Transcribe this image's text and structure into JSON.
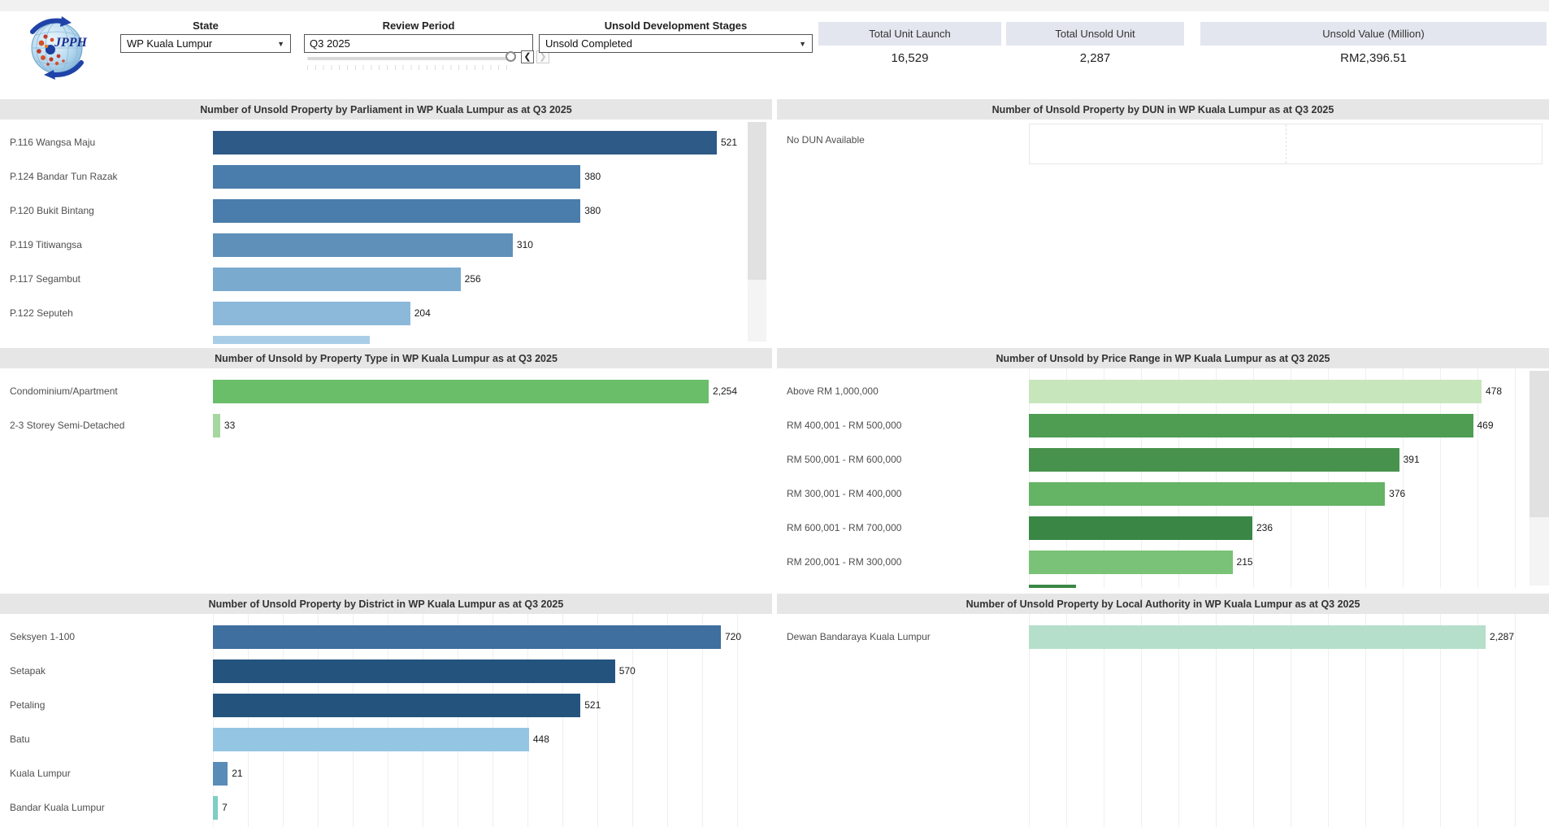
{
  "header": {
    "logo_text": "JPPH",
    "filters": {
      "state_label": "State",
      "state_value": "WP Kuala Lumpur",
      "review_label": "Review Period",
      "review_value": "Q3 2025",
      "prev_button": "❮",
      "next_button": "❯",
      "stages_label": "Unsold Development Stages",
      "stages_value": "Unsold Completed"
    },
    "kpis": [
      {
        "label": "Total Unit Launch",
        "value": "16,529"
      },
      {
        "label": "Total Unsold Unit",
        "value": "2,287"
      },
      {
        "label": "Unsold Value (Million)",
        "value": "RM2,396.51"
      }
    ]
  },
  "chart_data": [
    {
      "id": "parliament",
      "type": "bar",
      "orientation": "horizontal",
      "title": "Number of Unsold Property by Parliament in WP Kuala Lumpur as at Q3 2025",
      "categories": [
        "P.116 Wangsa Maju",
        "P.124 Bandar Tun Razak",
        "P.120 Bukit Bintang",
        "P.119 Titiwangsa",
        "P.117 Segambut",
        "P.122 Seputeh"
      ],
      "values": [
        521,
        380,
        380,
        310,
        256,
        204
      ],
      "value_labels": [
        "521",
        "380",
        "380",
        "310",
        "256",
        "204"
      ],
      "colors": [
        "#2d5a87",
        "#4a7dab",
        "#4a7dab",
        "#5f90ba",
        "#7aaace",
        "#8cb8da"
      ],
      "cutoff_bar": {
        "est_value": 162,
        "color": "#a9cde6",
        "note": "partially visible, scrolled out"
      },
      "scrollable": true,
      "gridlines": false
    },
    {
      "id": "dun",
      "type": "bar",
      "orientation": "horizontal",
      "title": "Number of Unsold Property by DUN in WP Kuala Lumpur as at Q3 2025",
      "categories": [],
      "values": [],
      "empty_label": "No DUN Available"
    },
    {
      "id": "property_type",
      "type": "bar",
      "orientation": "horizontal",
      "title": "Number of Unsold by Property Type in WP Kuala Lumpur as at Q3 2025",
      "categories": [
        "Condominium/Apartment",
        "2-3 Storey Semi-Detached"
      ],
      "values": [
        2254,
        33
      ],
      "value_labels": [
        "2,254",
        "33"
      ],
      "colors": [
        "#6abe6a",
        "#a7d7a0"
      ],
      "gridlines": false
    },
    {
      "id": "price_range",
      "type": "bar",
      "orientation": "horizontal",
      "title": "Number of Unsold by Price Range in WP Kuala Lumpur as at Q3 2025",
      "categories": [
        "Above RM 1,000,000",
        "RM 400,001 - RM 500,000",
        "RM 500,001 - RM 600,000",
        "RM 300,001 - RM 400,000",
        "RM 600,001 - RM 700,000",
        "RM 200,001 - RM 300,000"
      ],
      "values": [
        478,
        469,
        391,
        376,
        236,
        215
      ],
      "value_labels": [
        "478",
        "469",
        "391",
        "376",
        "236",
        "215"
      ],
      "colors": [
        "#c8e6bc",
        "#4e9d52",
        "#47934e",
        "#65b364",
        "#3a8745",
        "#79c277"
      ],
      "cutoff_bar": {
        "est_value": 50,
        "color": "#3a8745",
        "note": "partially visible, scrolled out"
      },
      "scrollable": true,
      "gridlines": true
    },
    {
      "id": "district",
      "type": "bar",
      "orientation": "horizontal",
      "title": "Number of Unsold Property by District in WP Kuala Lumpur as at Q3 2025",
      "categories": [
        "Seksyen 1-100",
        "Setapak",
        "Petaling",
        "Batu",
        "Kuala Lumpur",
        "Bandar Kuala Lumpur"
      ],
      "values": [
        720,
        570,
        521,
        448,
        21,
        7
      ],
      "value_labels": [
        "720",
        "570",
        "521",
        "448",
        "21",
        "7"
      ],
      "colors": [
        "#3e6f9e",
        "#24547e",
        "#24547e",
        "#94c6e4",
        "#5a8cb8",
        "#7ecec4"
      ],
      "gridlines": true
    },
    {
      "id": "local_authority",
      "type": "bar",
      "orientation": "horizontal",
      "title": "Number of Unsold Property by Local Authority in WP Kuala Lumpur as at Q3 2025",
      "categories": [
        "Dewan Bandaraya Kuala Lumpur"
      ],
      "values": [
        2287
      ],
      "value_labels": [
        "2,287"
      ],
      "colors": [
        "#b5dfcb"
      ],
      "gridlines": true
    }
  ]
}
